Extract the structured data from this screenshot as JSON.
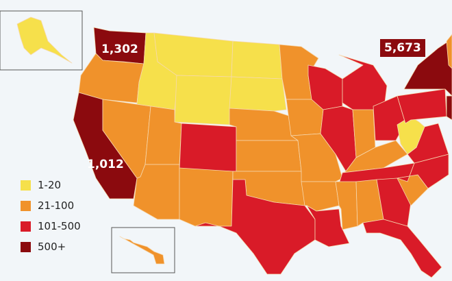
{
  "colors": {
    "1-20": "#f6e04b",
    "21-100": "#f0922b",
    "101-500": "#d91b28",
    "500+": "#8b0a0e",
    "border": "#f6d9b0",
    "background": "#f2f6f9"
  },
  "legend": [
    {
      "label": "1-20",
      "category": "1-20"
    },
    {
      "label": "21-100",
      "category": "21-100"
    },
    {
      "label": "101-500",
      "category": "101-500"
    },
    {
      "label": "500+",
      "category": "500+"
    }
  ],
  "callouts": {
    "washington": "1,302",
    "california": "1,012",
    "new_york": "5,673"
  },
  "state_categories": {
    "WA": "500+",
    "OR": "21-100",
    "CA": "500+",
    "NV": "21-100",
    "ID": "1-20",
    "MT": "1-20",
    "WY": "1-20",
    "ND": "1-20",
    "SD": "1-20",
    "UT": "21-100",
    "CO": "101-500",
    "AZ": "21-100",
    "NM": "21-100",
    "NE": "21-100",
    "KS": "21-100",
    "OK": "21-100",
    "TX": "101-500",
    "MN": "21-100",
    "IA": "21-100",
    "MO": "21-100",
    "AR": "21-100",
    "LA": "101-500",
    "WI": "101-500",
    "IL": "101-500",
    "MI": "101-500",
    "IN": "21-100",
    "OH": "101-500",
    "KY": "21-100",
    "TN": "101-500",
    "MS": "21-100",
    "AL": "21-100",
    "GA": "101-500",
    "FL": "101-500",
    "SC": "21-100",
    "NC": "101-500",
    "VA": "101-500",
    "WV": "1-20",
    "PA": "101-500",
    "NY": "500+",
    "NJ": "500+",
    "NE_US": "21-100",
    "AK": "1-20",
    "HI": "21-100"
  }
}
